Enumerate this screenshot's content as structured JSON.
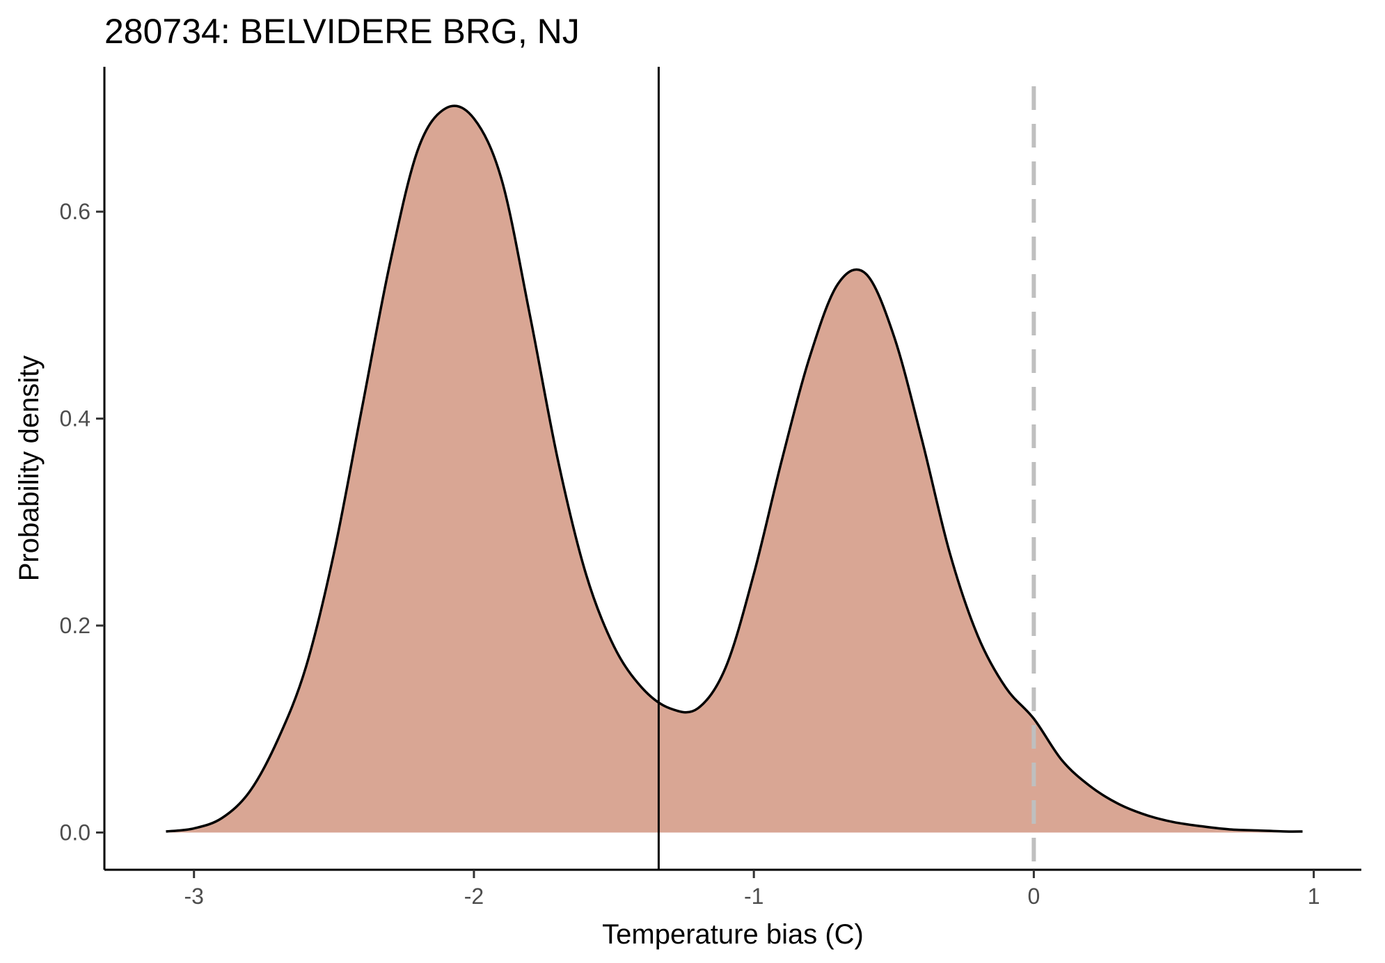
{
  "chart_data": {
    "type": "area",
    "title": "280734: BELVIDERE BRG, NJ",
    "xlabel": "Temperature bias (C)",
    "ylabel": "Probability density",
    "xlim": [
      -3.32,
      1.17
    ],
    "ylim": [
      -0.036,
      0.74
    ],
    "x_ticks": [
      -3,
      -2,
      -1,
      0,
      1
    ],
    "x_tick_labels": [
      "-3",
      "-2",
      "-1",
      "0",
      "1"
    ],
    "y_ticks": [
      0.0,
      0.2,
      0.4,
      0.6
    ],
    "y_tick_labels": [
      "0.0",
      "0.2",
      "0.4",
      "0.6"
    ],
    "grid": false,
    "legend": "none",
    "fill_color": "#d9a694",
    "line_color": "#000000",
    "reference_lines": [
      {
        "x": -1.34,
        "style": "solid",
        "color": "#000000"
      },
      {
        "x": 0,
        "style": "dashed",
        "color": "#bfbfbf"
      }
    ],
    "series": [
      {
        "x": [
          -3.1,
          -3.0,
          -2.9,
          -2.8,
          -2.7,
          -2.6,
          -2.5,
          -2.4,
          -2.3,
          -2.2,
          -2.1,
          -2.0,
          -1.9,
          -1.8,
          -1.7,
          -1.6,
          -1.5,
          -1.4,
          -1.3,
          -1.2,
          -1.1,
          -1.0,
          -0.9,
          -0.8,
          -0.7,
          -0.6,
          -0.5,
          -0.4,
          -0.3,
          -0.2,
          -0.1,
          0.0,
          0.1,
          0.2,
          0.3,
          0.4,
          0.5,
          0.6,
          0.7,
          0.8,
          0.9,
          0.96
        ],
        "values": [
          0.001,
          0.004,
          0.014,
          0.04,
          0.09,
          0.16,
          0.27,
          0.41,
          0.55,
          0.66,
          0.7,
          0.69,
          0.63,
          0.5,
          0.36,
          0.25,
          0.18,
          0.14,
          0.12,
          0.12,
          0.16,
          0.25,
          0.36,
          0.46,
          0.53,
          0.54,
          0.48,
          0.38,
          0.27,
          0.19,
          0.14,
          0.11,
          0.07,
          0.045,
          0.028,
          0.017,
          0.01,
          0.006,
          0.003,
          0.002,
          0.001,
          0.001
        ]
      }
    ]
  }
}
